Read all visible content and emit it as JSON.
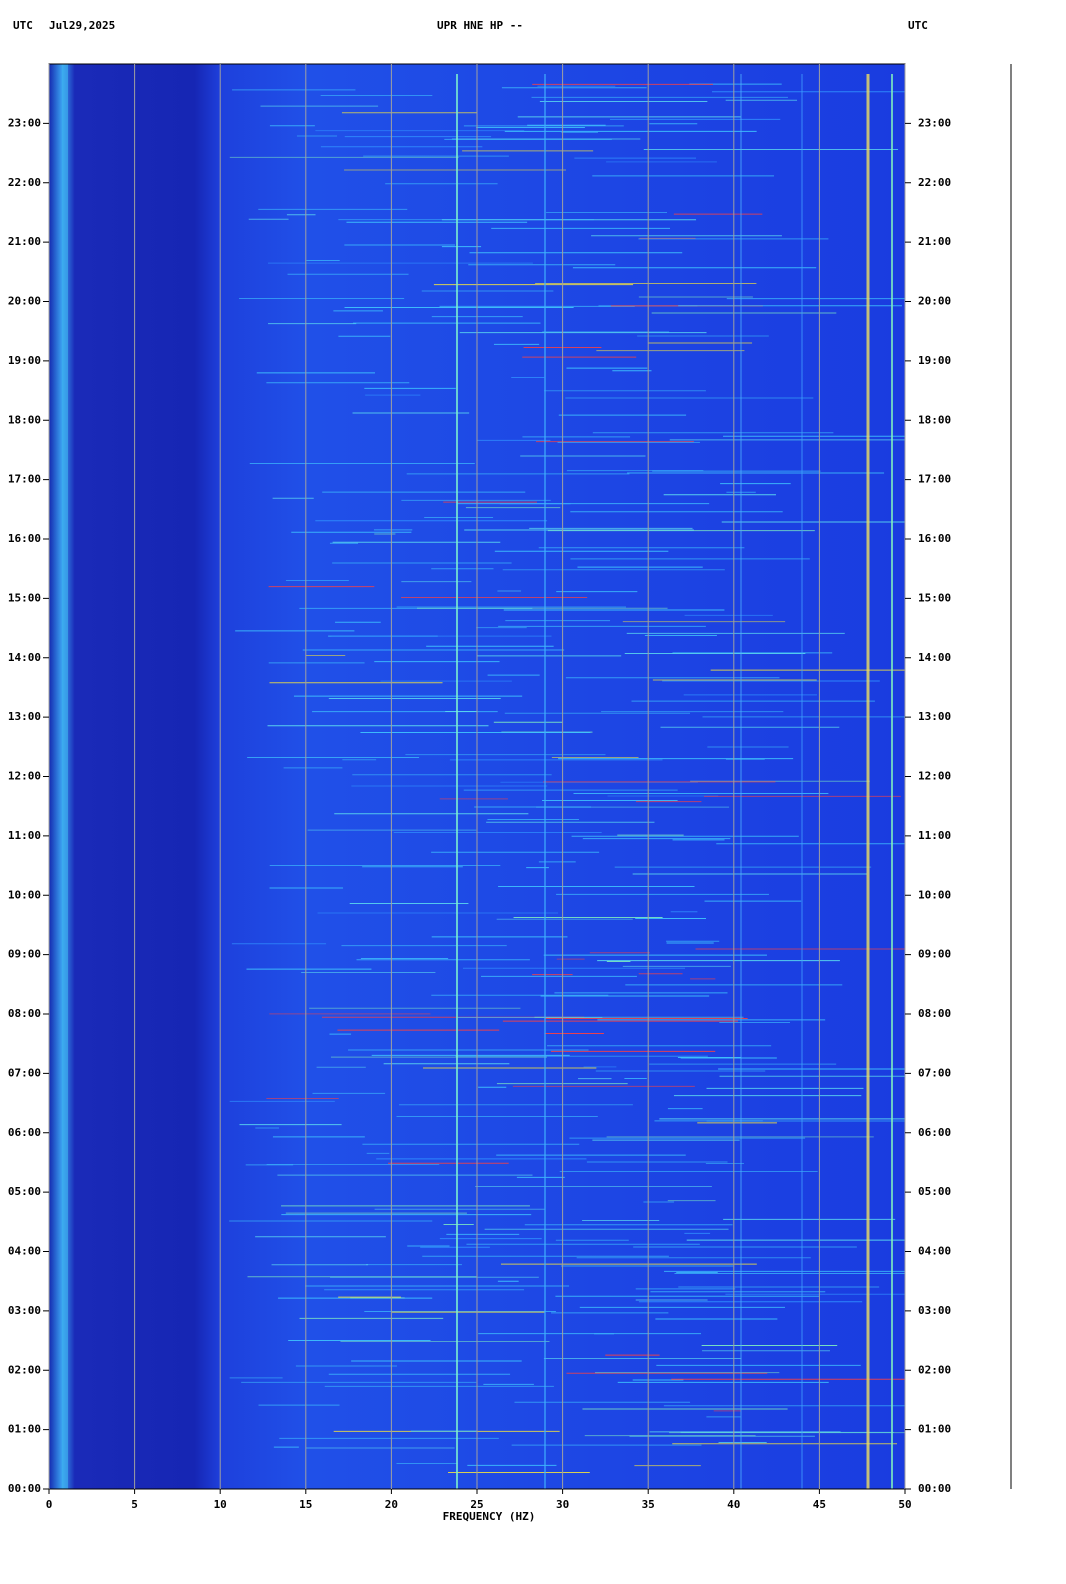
{
  "chart_data": {
    "type": "spectrogram",
    "timezone_label": "UTC",
    "date": "Jul29,2025",
    "title": "UPR HNE HP --",
    "right_label": "UTC",
    "xlabel": "FREQUENCY (HZ)",
    "xlim": [
      0,
      50
    ],
    "xticks": [
      0,
      5,
      10,
      15,
      20,
      25,
      30,
      35,
      40,
      45,
      50
    ],
    "ylim": [
      0,
      24
    ],
    "yticks": [
      {
        "value": 0,
        "label": "00:00"
      },
      {
        "value": 1,
        "label": "01:00"
      },
      {
        "value": 2,
        "label": "02:00"
      },
      {
        "value": 3,
        "label": "03:00"
      },
      {
        "value": 4,
        "label": "04:00"
      },
      {
        "value": 5,
        "label": "05:00"
      },
      {
        "value": 6,
        "label": "06:00"
      },
      {
        "value": 7,
        "label": "07:00"
      },
      {
        "value": 8,
        "label": "08:00"
      },
      {
        "value": 9,
        "label": "09:00"
      },
      {
        "value": 10,
        "label": "10:00"
      },
      {
        "value": 11,
        "label": "11:00"
      },
      {
        "value": 12,
        "label": "12:00"
      },
      {
        "value": 13,
        "label": "13:00"
      },
      {
        "value": 14,
        "label": "14:00"
      },
      {
        "value": 15,
        "label": "15:00"
      },
      {
        "value": 16,
        "label": "16:00"
      },
      {
        "value": 17,
        "label": "17:00"
      },
      {
        "value": 18,
        "label": "18:00"
      },
      {
        "value": 19,
        "label": "19:00"
      },
      {
        "value": 20,
        "label": "20:00"
      },
      {
        "value": 21,
        "label": "21:00"
      },
      {
        "value": 22,
        "label": "22:00"
      },
      {
        "value": 23,
        "label": "23:00"
      }
    ],
    "grid": true
  }
}
